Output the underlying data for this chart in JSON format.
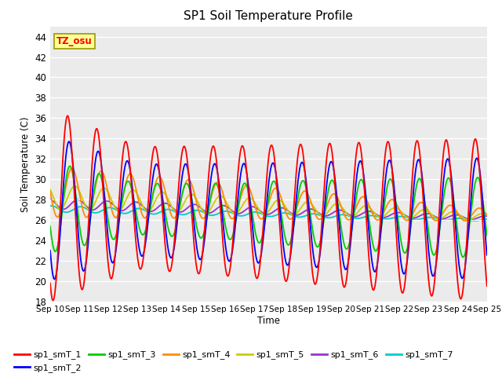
{
  "title": "SP1 Soil Temperature Profile",
  "xlabel": "Time",
  "ylabel": "Soil Temperature (C)",
  "tz_label": "TZ_osu",
  "ylim": [
    18,
    45
  ],
  "yticks": [
    18,
    20,
    22,
    24,
    26,
    28,
    30,
    32,
    34,
    36,
    38,
    40,
    42,
    44
  ],
  "series_colors": {
    "sp1_smT_1": "#FF0000",
    "sp1_smT_2": "#0000FF",
    "sp1_smT_3": "#00CC00",
    "sp1_smT_4": "#FF8C00",
    "sp1_smT_5": "#CCCC00",
    "sp1_smT_6": "#9933CC",
    "sp1_smT_7": "#00CCCC"
  },
  "plot_bg_color": "#EBEBEB",
  "start_day": 10,
  "end_day": 25,
  "n_points": 720,
  "figsize": [
    6.4,
    4.8
  ],
  "dpi": 100
}
